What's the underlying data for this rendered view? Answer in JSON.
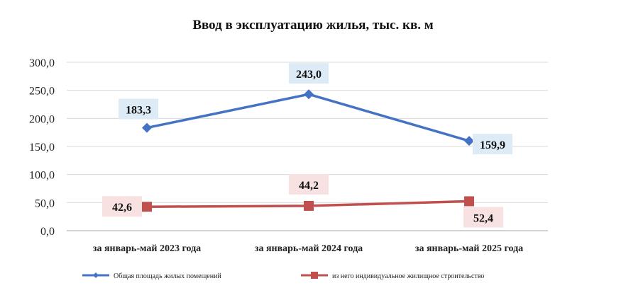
{
  "chart_data": {
    "type": "line",
    "title": "Ввод в эксплуатацию жилья, тыс. кв. м",
    "categories": [
      "за январь-май 2023 года",
      "за январь-май 2024 года",
      "за январь-май 2025 года"
    ],
    "ylim": [
      0,
      300
    ],
    "yticks": [
      "0,0",
      "50,0",
      "100,0",
      "150,0",
      "200,0",
      "250,0",
      "300,0"
    ],
    "grid": true,
    "legend_position": "bottom",
    "series": [
      {
        "name": "Общая площадь жилых помещений",
        "values": [
          183.3,
          243.0,
          159.9
        ],
        "labels": [
          "183,3",
          "243,0",
          "159,9"
        ],
        "color": "#4472C4",
        "label_bg": "#DDEBF7",
        "marker": "diamond"
      },
      {
        "name": "из него индивидуальное жилищное строительство",
        "values": [
          42.6,
          44.2,
          52.4
        ],
        "labels": [
          "42,6",
          "44,2",
          "52,4"
        ],
        "color": "#C0504D",
        "label_bg": "#F8E1E1",
        "marker": "square"
      }
    ]
  }
}
